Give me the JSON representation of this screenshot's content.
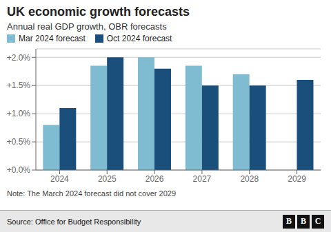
{
  "chart_data": {
    "type": "bar",
    "title": "UK economic growth forecasts",
    "subtitle": "Annual real GDP growth, OBR forecasts",
    "categories": [
      "2024",
      "2025",
      "2026",
      "2027",
      "2028",
      "2029"
    ],
    "series": [
      {
        "name": "Mar 2024 forecast",
        "color": "#7fbcd2",
        "values": [
          0.8,
          1.85,
          2.0,
          1.85,
          1.7,
          null
        ]
      },
      {
        "name": "Oct 2024 forecast",
        "color": "#1a4f7c",
        "values": [
          1.1,
          2.0,
          1.8,
          1.5,
          1.5,
          1.6
        ]
      }
    ],
    "ylim": [
      0,
      2.15
    ],
    "yticks": [
      {
        "value": 0.0,
        "label": "+0.0%"
      },
      {
        "value": 0.5,
        "label": "+0.5%"
      },
      {
        "value": 1.0,
        "label": "+1.0%"
      },
      {
        "value": 1.5,
        "label": "+1.5%"
      },
      {
        "value": 2.0,
        "label": "+2.0%"
      }
    ],
    "grid": true,
    "legend": "upper left",
    "annotations": [
      "Note: The March 2024 forecast did not cover 2029",
      "Source: Office for Budget Responsibility",
      "BBC"
    ]
  }
}
